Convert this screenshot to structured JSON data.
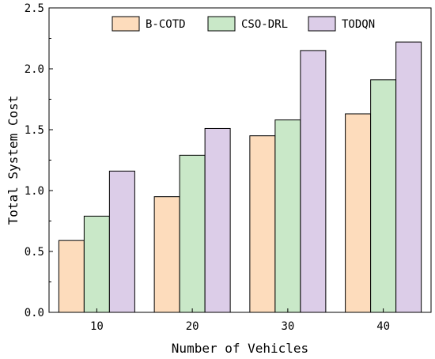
{
  "chart_data": {
    "type": "bar",
    "categories": [
      "10",
      "20",
      "30",
      "40"
    ],
    "series": [
      {
        "name": "B-COTD",
        "values": [
          0.59,
          0.95,
          1.45,
          1.63
        ],
        "color": "#fddcbc"
      },
      {
        "name": "CSO-DRL",
        "values": [
          0.79,
          1.29,
          1.58,
          1.91
        ],
        "color": "#c9e8c8"
      },
      {
        "name": "TODQN",
        "values": [
          1.16,
          1.51,
          2.15,
          2.22
        ],
        "color": "#dccde8"
      }
    ],
    "xlabel": "Number of Vehicles",
    "ylabel": "Total System Cost",
    "ylim": [
      0.0,
      2.5
    ],
    "yticks": [
      "0.0",
      "0.5",
      "1.0",
      "1.5",
      "2.0",
      "2.5"
    ],
    "grid": false,
    "legend_position": "top-right"
  }
}
